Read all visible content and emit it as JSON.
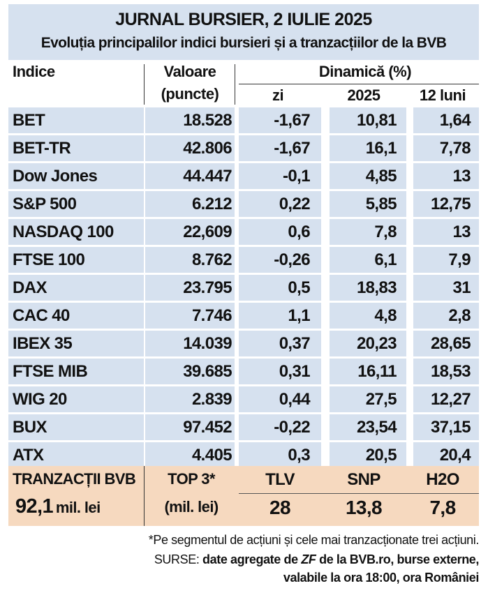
{
  "title": "JURNAL BURSIER, 2 IULIE 2025",
  "subtitle": "Evoluția principalilor indici bursieri și a tranzacțiilor de la BVB",
  "headers": {
    "indice": "Indice",
    "valoare_line1": "Valoare",
    "valoare_line2": "(puncte)",
    "dinamica": "Dinamică (%)",
    "zi": "zi",
    "an": "2025",
    "luni": "12 luni"
  },
  "rows": [
    {
      "name": "BET",
      "value": "18.528",
      "zi": "-1,67",
      "an": "10,81",
      "luni": "1,64"
    },
    {
      "name": "BET-TR",
      "value": "42.806",
      "zi": "-1,67",
      "an": "16,1",
      "luni": "7,78"
    },
    {
      "name": "Dow Jones",
      "value": "44.447",
      "zi": "-0,1",
      "an": "4,85",
      "luni": "13"
    },
    {
      "name": "S&P 500",
      "value": "6.212",
      "zi": "0,22",
      "an": "5,85",
      "luni": "12,75"
    },
    {
      "name": "NASDAQ 100",
      "value": "22,609",
      "zi": "0,6",
      "an": "7,8",
      "luni": "13"
    },
    {
      "name": "FTSE 100",
      "value": "8.762",
      "zi": "-0,26",
      "an": "6,1",
      "luni": "7,9"
    },
    {
      "name": "DAX",
      "value": "23.795",
      "zi": "0,5",
      "an": "18,83",
      "luni": "31"
    },
    {
      "name": "CAC 40",
      "value": "7.746",
      "zi": "1,1",
      "an": "4,8",
      "luni": "2,8"
    },
    {
      "name": "IBEX 35",
      "value": "14.039",
      "zi": "0,37",
      "an": "20,23",
      "luni": "28,65"
    },
    {
      "name": "FTSE MIB",
      "value": "39.685",
      "zi": "0,31",
      "an": "16,11",
      "luni": "18,53"
    },
    {
      "name": "WIG 20",
      "value": "2.839",
      "zi": "0,44",
      "an": "27,5",
      "luni": "12,27"
    },
    {
      "name": "BUX",
      "value": "97.452",
      "zi": "-0,22",
      "an": "23,54",
      "luni": "37,15"
    },
    {
      "name": "ATX",
      "value": "4.405",
      "zi": "0,3",
      "an": "20,5",
      "luni": "20,4"
    }
  ],
  "bvb": {
    "label": "TRANZACȚII BVB",
    "total_value": "92,1",
    "total_unit": "mil. lei",
    "top_label": "TOP 3*",
    "top_unit": "(mil. lei)",
    "stocks": [
      {
        "ticker": "TLV",
        "value": "28"
      },
      {
        "ticker": "SNP",
        "value": "13,8"
      },
      {
        "ticker": "H2O",
        "value": "7,8"
      }
    ]
  },
  "footer": {
    "note": "*Pe segmentul de acțiuni și cele mai tranzacționate trei acțiuni.",
    "sources_prefix": "SURSE: ",
    "sources_part1": "date agregate de ",
    "sources_zf": "ZF",
    "sources_part2": " de la BVB.ro, burse externe,",
    "sources_line2": "valabile la ora 18:00, ora României"
  },
  "colors": {
    "header_blue": "#d6e1ef",
    "row_blue": "#d6e1ef",
    "bvb_peach": "#f6d9bf"
  }
}
